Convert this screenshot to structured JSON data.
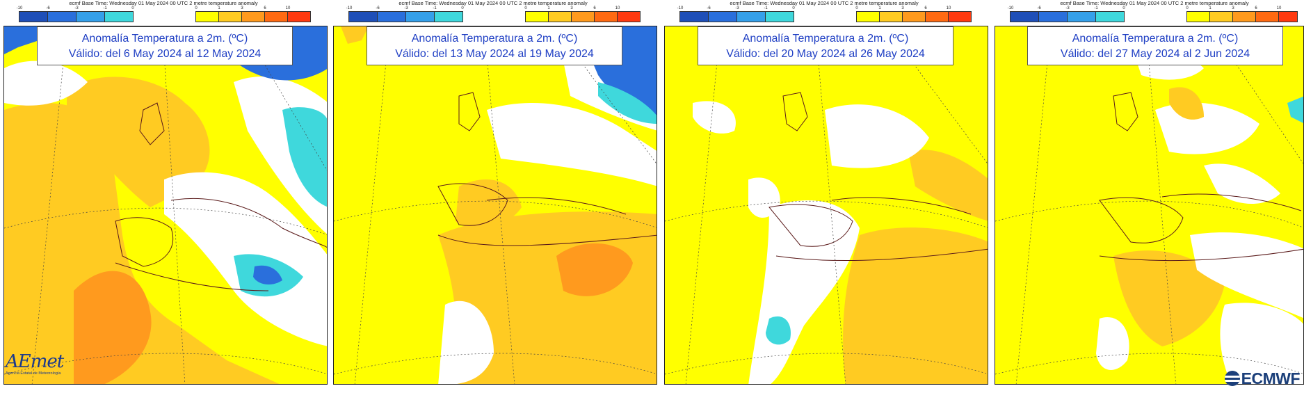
{
  "legend": {
    "caption": "ecmf  Base Time: Wednesday 01 May 2024 00 UTC 2 metre temperature anomaly",
    "cold_ticks": [
      "-10",
      "-6",
      "-3",
      "-1",
      "0"
    ],
    "warm_ticks": [
      "0",
      "1",
      "3",
      "6",
      "10"
    ],
    "cold_colors": [
      "#1f4fb8",
      "#2a6fdc",
      "#35a0ea",
      "#3fd8dc"
    ],
    "warm_colors": [
      "#ffff00",
      "#ffcb22",
      "#ff9a1e",
      "#ff6a12",
      "#ff3a10"
    ]
  },
  "panels": [
    {
      "title_line1": "Anomalía Temperatura a 2m. (ºC)",
      "title_line2": "Válido: del 6 May 2024 al 12 May 2024"
    },
    {
      "title_line1": "Anomalía Temperatura a 2m. (ºC)",
      "title_line2": "Válido: del 13 May 2024 al 19 May 2024"
    },
    {
      "title_line1": "Anomalía Temperatura a 2m. (ºC)",
      "title_line2": "Válido: del 20 May 2024 al 26 May 2024"
    },
    {
      "title_line1": "Anomalía Temperatura a 2m. (ºC)",
      "title_line2": "Válido: del 27 May 2024 al 2 Jun 2024"
    }
  ],
  "logos": {
    "aemet_wordmark": "AEmet",
    "aemet_subtitle": "Agencia Estatal de Meteorología",
    "ecmwf_wordmark": "ECMWF"
  },
  "colors": {
    "land_outline": "#5a1a1a",
    "grid": "#444444",
    "title_text": "#1f3fc4"
  }
}
